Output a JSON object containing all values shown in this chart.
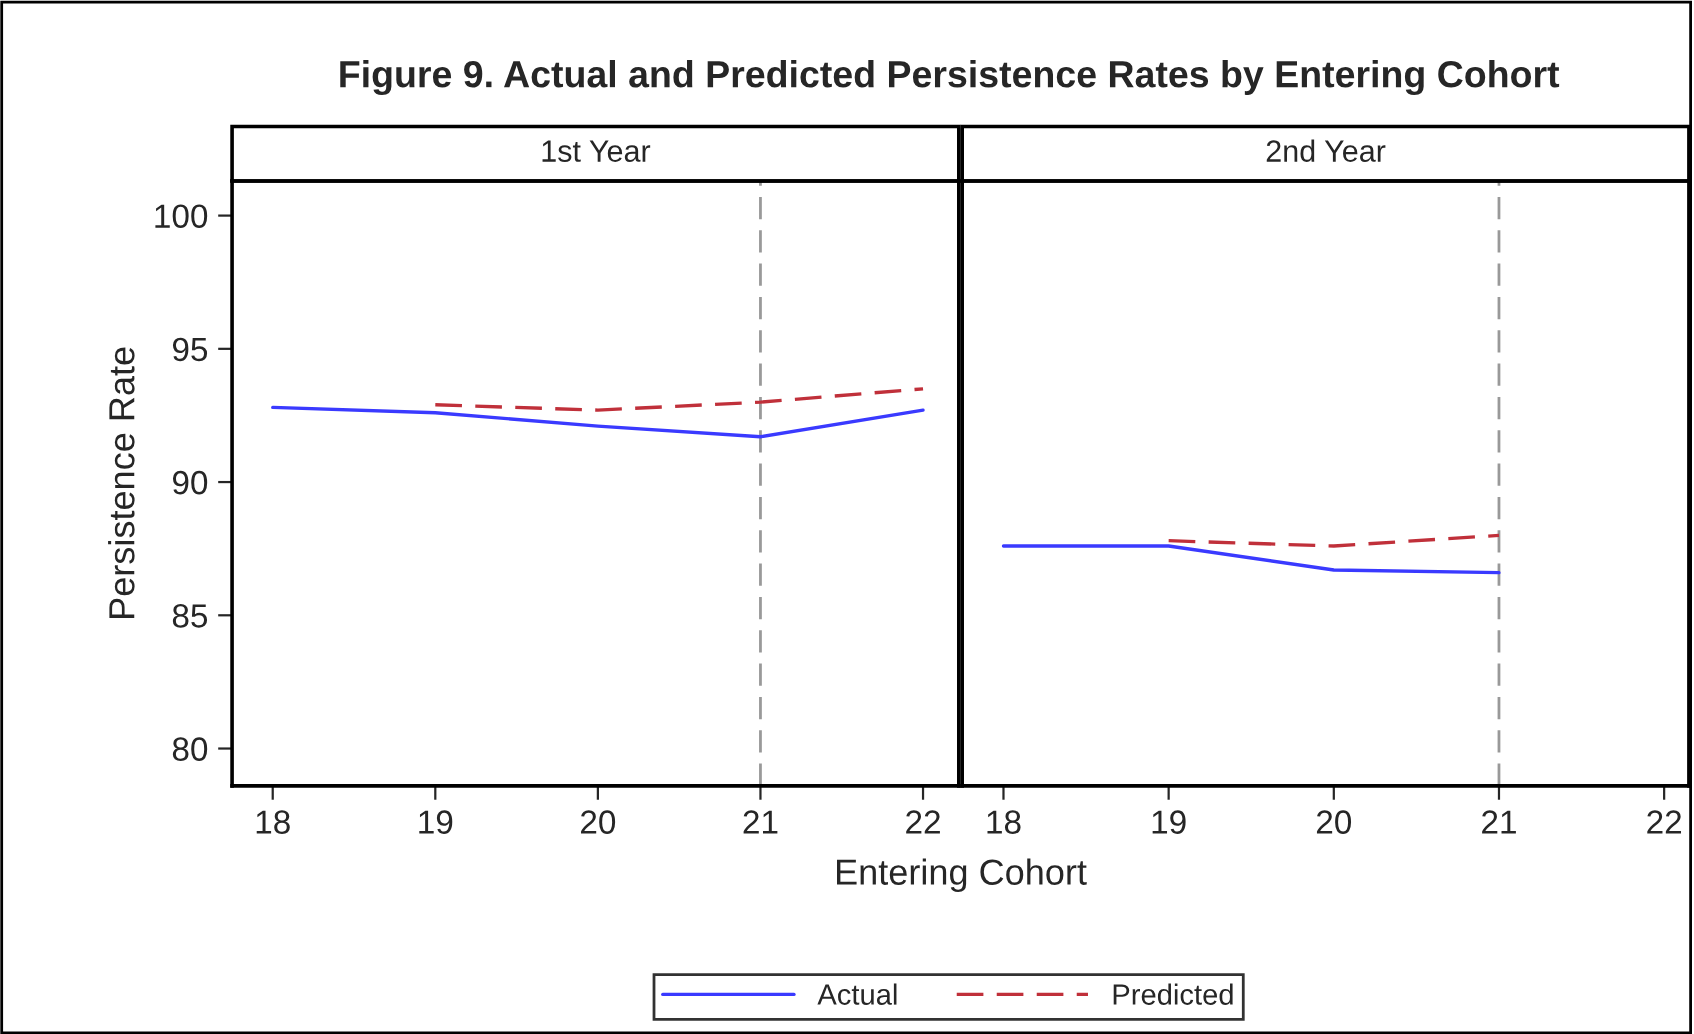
{
  "chart_data": [
    {
      "type": "line",
      "title": "Figure 9. Actual and Predicted Persistence Rates by Entering Cohort",
      "subtitle": "1st Year",
      "xlabel": "Entering Cohort",
      "ylabel": "Persistence Rate",
      "xlim": [
        17.75,
        22.22
      ],
      "xticks": [
        18,
        19,
        20,
        21,
        22
      ],
      "ylim": [
        78.6,
        101.3
      ],
      "yticks": [
        80,
        85,
        90,
        95,
        100
      ],
      "legend": "bottom",
      "grid": false,
      "ref_lines": [
        {
          "axis": "x",
          "value": 21,
          "color": "#999999",
          "line_style": "dashed"
        }
      ],
      "series": [
        {
          "name": "Actual",
          "color": "#3a3aff",
          "line_style": "solid",
          "x": [
            18,
            19,
            20,
            21,
            22
          ],
          "values": [
            92.8,
            92.6,
            92.1,
            91.7,
            92.7
          ]
        },
        {
          "name": "Predicted",
          "color": "#c0303a",
          "line_style": "dashed",
          "x": [
            19,
            20,
            21,
            22
          ],
          "values": [
            92.9,
            92.7,
            93.0,
            93.5
          ]
        }
      ]
    },
    {
      "type": "line",
      "subtitle": "2nd Year",
      "xlim": [
        17.75,
        22.15
      ],
      "xticks": [
        18,
        19,
        20,
        21,
        22
      ],
      "ylim": [
        78.6,
        101.3
      ],
      "yticks": [
        80,
        85,
        90,
        95,
        100
      ],
      "tick_labels": "x",
      "grid": false,
      "ref_lines": [
        {
          "axis": "x",
          "value": 21,
          "color": "#999999",
          "line_style": "dashed"
        }
      ],
      "series": [
        {
          "name": "Actual",
          "color": "#3a3aff",
          "line_style": "solid",
          "x": [
            18,
            19,
            20,
            21
          ],
          "values": [
            87.6,
            87.6,
            86.7,
            86.6
          ]
        },
        {
          "name": "Predicted",
          "color": "#c0303a",
          "line_style": "dashed",
          "x": [
            19,
            20,
            21
          ],
          "values": [
            87.8,
            87.6,
            88.0
          ]
        }
      ]
    }
  ]
}
